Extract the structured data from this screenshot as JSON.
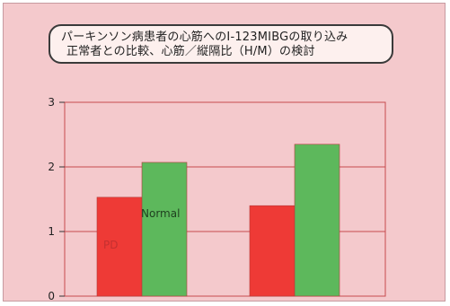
{
  "slide": {
    "title_line1": "パーキンソン病患者の心筋へのI-123MIBGの取り込み",
    "title_line2": "正常者との比較、心筋／縦隔比（H/M）の検討"
  },
  "chart_data": {
    "type": "bar",
    "categories": [
      "",
      ""
    ],
    "series": [
      {
        "name": "PD",
        "color": "#ee3a36",
        "values": [
          1.53,
          1.4
        ]
      },
      {
        "name": "Normal",
        "color": "#5db85c",
        "values": [
          2.07,
          2.35
        ]
      }
    ],
    "series_labels": [
      "PD",
      "Normal"
    ],
    "ylim": [
      0,
      3
    ],
    "yticks": [
      "0",
      "1",
      "2",
      "3"
    ],
    "grid": true,
    "xlabel": "",
    "ylabel": ""
  }
}
